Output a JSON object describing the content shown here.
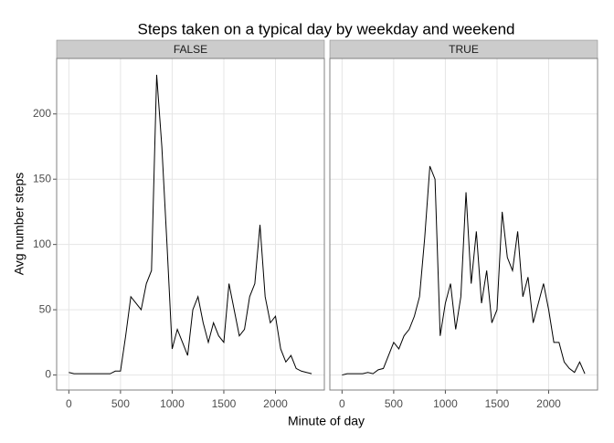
{
  "chart_data": {
    "type": "line",
    "title": "Steps taken on a typical day by weekday and weekend",
    "x_label": "Minute of day",
    "y_label": "Avg number steps",
    "xlim": [
      -118,
      2473
    ],
    "ylim": [
      -11.5,
      242.5
    ],
    "xticks": [
      0,
      500,
      1000,
      1500,
      2000
    ],
    "yticks": [
      0,
      50,
      100,
      150,
      200
    ],
    "grid": true,
    "x": [
      0,
      50,
      100,
      150,
      200,
      250,
      300,
      350,
      400,
      450,
      500,
      550,
      600,
      650,
      700,
      750,
      800,
      850,
      900,
      950,
      1000,
      1050,
      1100,
      1150,
      1200,
      1250,
      1300,
      1350,
      1400,
      1450,
      1500,
      1550,
      1600,
      1650,
      1700,
      1750,
      1800,
      1850,
      1900,
      1950,
      2000,
      2050,
      2100,
      2150,
      2200,
      2250,
      2300,
      2350
    ],
    "series": [
      {
        "name": "FALSE",
        "color": "#000000",
        "values": [
          2,
          1,
          1,
          1,
          1,
          1,
          1,
          1,
          1,
          3,
          3,
          30,
          60,
          55,
          50,
          70,
          80,
          230,
          175,
          100,
          20,
          35,
          25,
          15,
          50,
          60,
          40,
          25,
          40,
          30,
          25,
          70,
          50,
          30,
          35,
          60,
          70,
          115,
          60,
          40,
          45,
          20,
          10,
          15,
          5,
          3,
          2,
          1
        ]
      },
      {
        "name": "TRUE",
        "color": "#000000",
        "values": [
          0,
          1,
          1,
          1,
          1,
          2,
          1,
          4,
          5,
          15,
          25,
          20,
          30,
          35,
          45,
          60,
          105,
          160,
          150,
          30,
          55,
          70,
          35,
          60,
          140,
          70,
          110,
          55,
          80,
          40,
          50,
          125,
          90,
          80,
          110,
          60,
          75,
          40,
          55,
          70,
          50,
          25,
          25,
          10,
          5,
          2,
          10,
          1
        ]
      }
    ]
  }
}
